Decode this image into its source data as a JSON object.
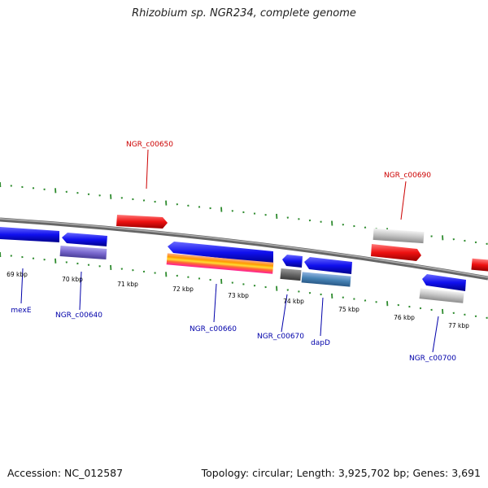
{
  "title": "Rhizobium sp. NGR234, complete genome",
  "footer": {
    "accession": "Accession: NC_012587",
    "summary": "Topology: circular; Length: 3,925,702 bp; Genes: 3,691"
  },
  "colors": {
    "backbone": "#888888",
    "tick": "#2e8b2e",
    "forward_label": "#cc0000",
    "reverse_label": "#0000aa",
    "cds_forward": "#ee1111",
    "cds_reverse": "#1010ee",
    "pseudo": "#bbbbbb",
    "rna": "#7766cc"
  },
  "scale": {
    "kbp_labels": [
      "69 kbp",
      "70 kbp",
      "71 kbp",
      "72 kbp",
      "73 kbp",
      "74 kbp",
      "75 kbp",
      "76 kbp",
      "77 kbp"
    ]
  },
  "genes": {
    "forward_labels": [
      "NGR_c00650",
      "NGR_c00690"
    ],
    "reverse_labels": [
      "mexE",
      "NGR_c00640",
      "NGR_c00660",
      "NGR_c00670",
      "dapD",
      "NGR_c00700"
    ]
  }
}
